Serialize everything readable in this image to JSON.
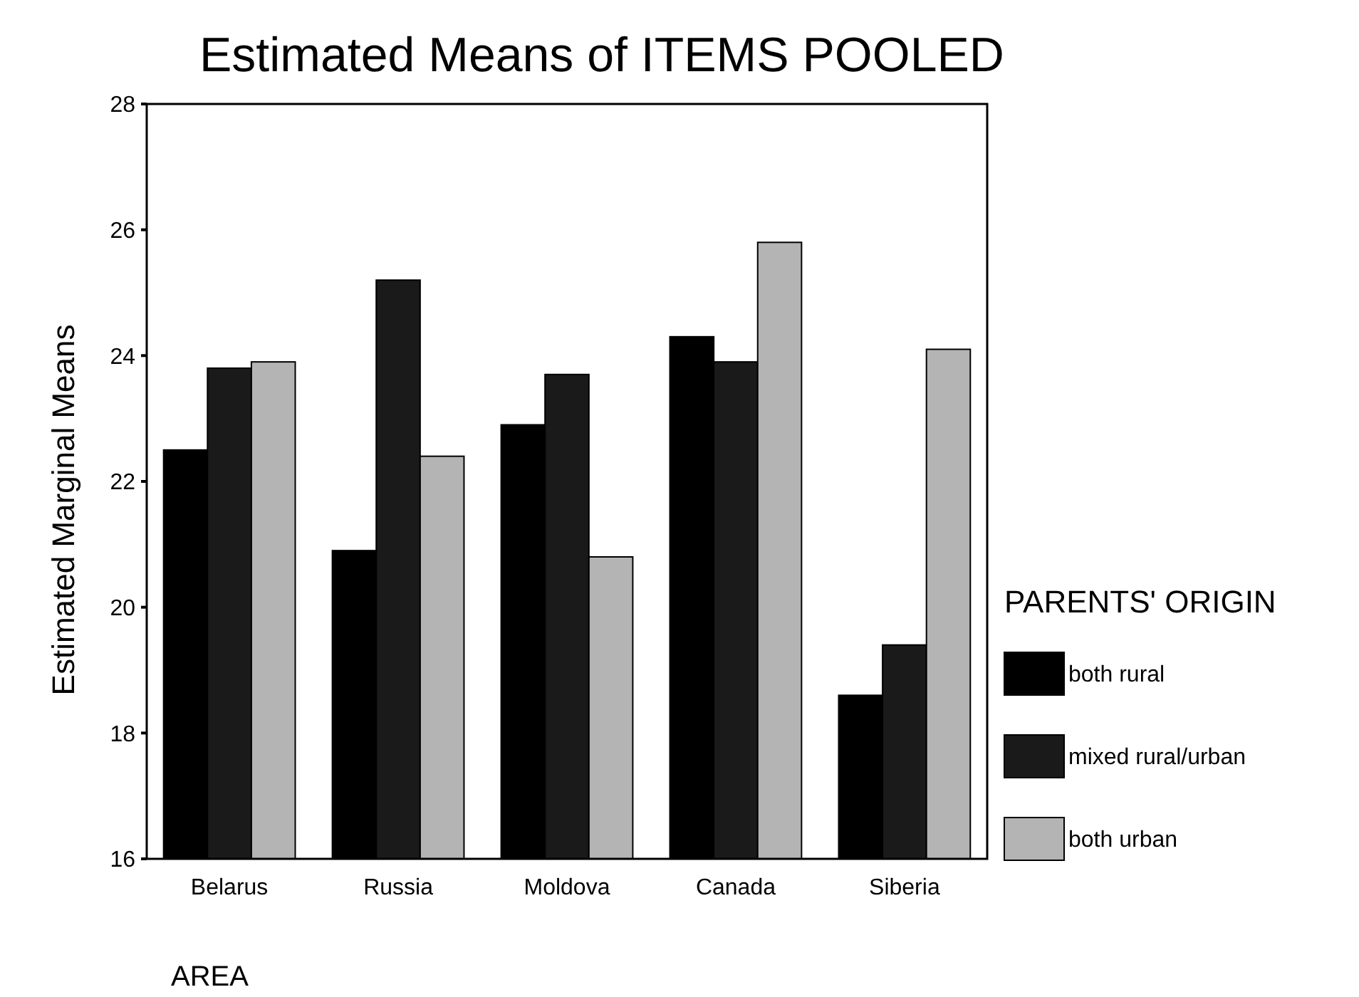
{
  "chart_data": {
    "type": "bar",
    "title": "Estimated Means of ITEMS POOLED",
    "xlabel": "AREA",
    "ylabel": "Estimated Marginal Means",
    "legend_title": "PARENTS' ORIGIN",
    "categories": [
      "Belarus",
      "Russia",
      "Moldova",
      "Canada",
      "Siberia"
    ],
    "series": [
      {
        "name": "both rural",
        "color": "#000000",
        "values": [
          22.5,
          20.9,
          22.9,
          24.3,
          18.6
        ]
      },
      {
        "name": "mixed rural/urban",
        "color": "#1a1a1a",
        "values": [
          23.8,
          25.2,
          23.7,
          23.9,
          19.4
        ]
      },
      {
        "name": "both urban",
        "color": "#b4b4b4",
        "values": [
          23.9,
          22.4,
          20.8,
          25.8,
          24.1
        ]
      }
    ],
    "ylim": [
      16,
      28
    ],
    "yticks": [
      16,
      18,
      20,
      22,
      24,
      26,
      28
    ],
    "grid": false,
    "legend": "right"
  }
}
